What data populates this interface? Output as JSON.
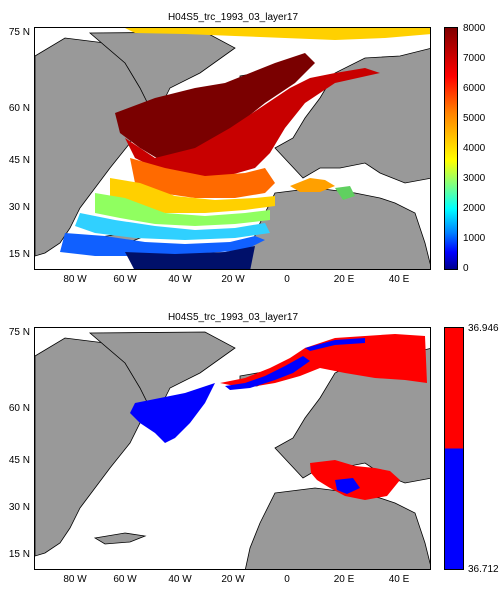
{
  "colors": {
    "land": "#999999",
    "ocean": "#ffffff",
    "coast": "#000000",
    "high": "#ff0000",
    "low": "#0000ff"
  },
  "map1": {
    "title": "H04S5_trc_1993_03_layer17",
    "y_ticks": [
      "75 N",
      "60 N",
      "45 N",
      "30 N",
      "15 N"
    ],
    "x_ticks": [
      "80 W",
      "60 W",
      "40 W",
      "20 W",
      "0",
      "20 E",
      "40 E"
    ],
    "colorbar": {
      "type": "jet",
      "range": [
        0,
        8000
      ],
      "ticks": [
        "8000",
        "7000",
        "6000",
        "5000",
        "4000",
        "3000",
        "2000",
        "1000",
        "0"
      ]
    }
  },
  "map2": {
    "title": "H04S5_trc_1993_03_layer17",
    "y_ticks": [
      "75 N",
      "60 N",
      "45 N",
      "30 N",
      "15 N"
    ],
    "x_ticks": [
      "80 W",
      "60 W",
      "40 W",
      "20 W",
      "0",
      "20 E",
      "40 E"
    ],
    "colorbar": {
      "type": "two-color",
      "top_label": "36.946",
      "bottom_label": "36.712"
    }
  }
}
